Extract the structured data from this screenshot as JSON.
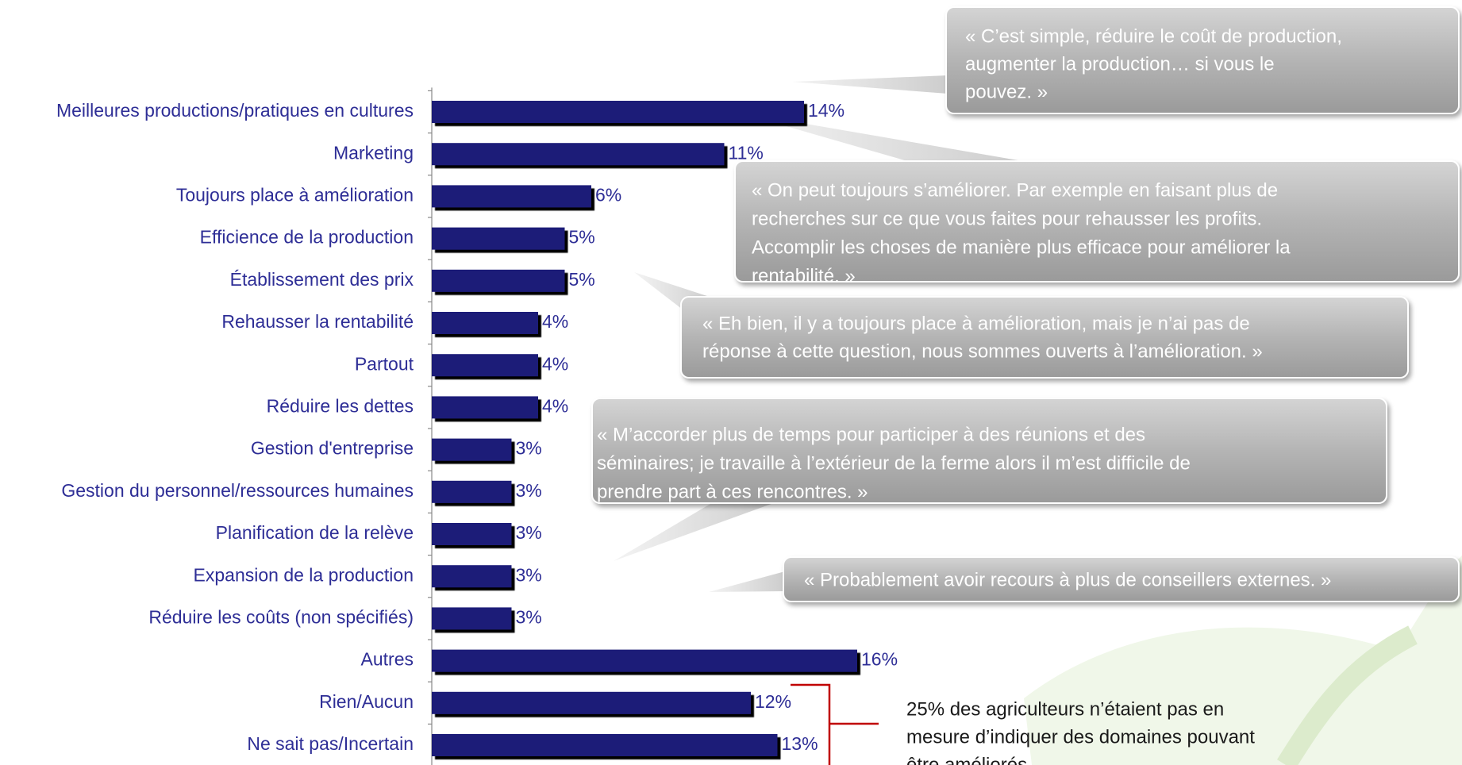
{
  "chart_data": {
    "type": "barh",
    "categories": [
      "Meilleures productions/pratiques en cultures",
      "Marketing",
      "Toujours place à amélioration",
      "Efficience de la production",
      "Établissement des prix",
      "Rehausser la rentabilité",
      "Partout",
      "Réduire les dettes",
      "Gestion d'entreprise",
      "Gestion du personnel/ressources humaines",
      "Planification de la relève",
      "Expansion de la production",
      "Réduire les coûts (non spécifiés)",
      "Autres",
      "Rien/Aucun",
      "Ne sait pas/Incertain"
    ],
    "values": [
      14,
      11,
      6,
      5,
      5,
      4,
      4,
      4,
      3,
      3,
      3,
      3,
      3,
      16,
      12,
      13
    ],
    "value_labels": [
      "14%",
      "11%",
      "6%",
      "5%",
      "5%",
      "4%",
      "4%",
      "4%",
      "3%",
      "3%",
      "3%",
      "3%",
      "3%",
      "16%",
      "12%",
      "13%"
    ],
    "color": "#1e1e78",
    "annotations": [
      [
        "« C’est simple, réduire le coût de production,",
        "augmenter la production… si vous le",
        "pouvez. »"
      ],
      [
        "« On peut toujours s’améliorer. Par exemple en faisant plus de",
        "recherches sur ce que vous faites pour rehausser les profits.",
        "Accomplir les choses de manière plus efficace pour améliorer la",
        "rentabilité. »"
      ],
      [
        "« Eh bien, il y a toujours place à amélioration, mais je n’ai pas de",
        "réponse à cette question, nous sommes ouverts à l’amélioration. »"
      ],
      [
        "« M’accorder plus de temps pour participer à des réunions et des",
        "séminaires; je travaille à l’extérieur de la ferme alors il m’est difficile de",
        "prendre part à ces rencontres. »"
      ],
      [
        "« Probablement avoir recours à plus de conseillers externes. »"
      ]
    ],
    "note": [
      "25% des agriculteurs n’étaient pas en",
      "mesure d’indiquer des domaines pouvant",
      "être améliorés."
    ]
  }
}
